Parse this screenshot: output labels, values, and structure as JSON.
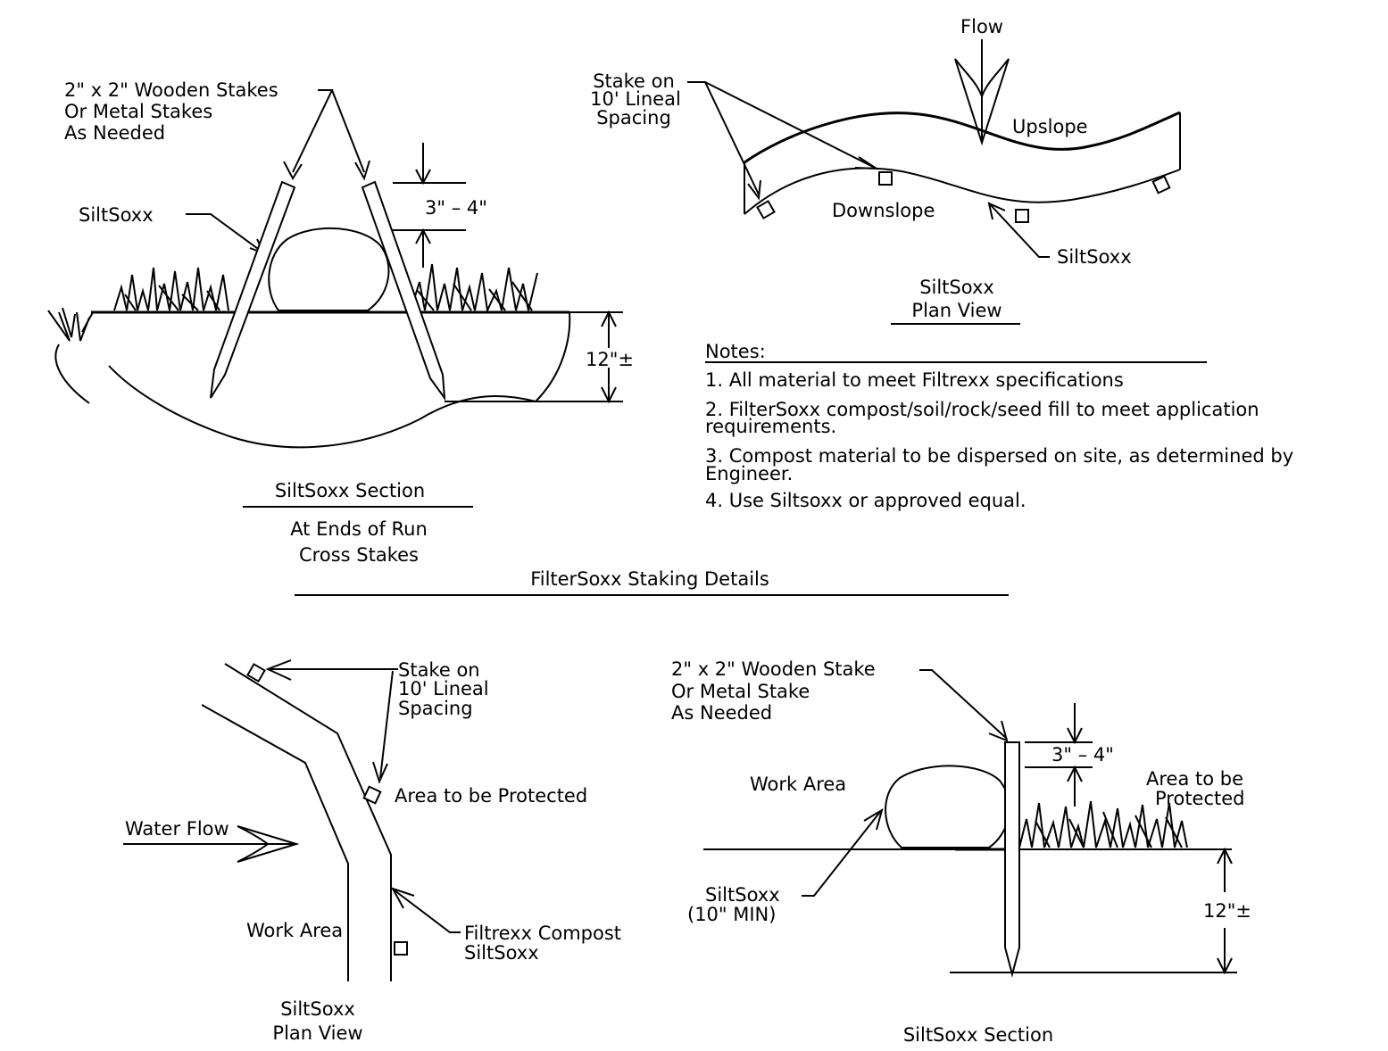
{
  "title": "FilterSoxx Staking Details",
  "section_a": {
    "stake_label": [
      "2\" x 2\" Wooden Stakes",
      "Or Metal Stakes",
      "As Needed"
    ],
    "soxx_label": "SiltSoxx",
    "height_dim": "3\" – 4\"",
    "depth_dim": "12\"±",
    "caption": "SiltSoxx Section",
    "subcaption": [
      "At Ends of Run",
      "Cross Stakes"
    ]
  },
  "plan_a": {
    "flow_label": "Flow",
    "stake_label": [
      "Stake on",
      "10' Lineal",
      "Spacing"
    ],
    "upslope_label": "Upslope",
    "downslope_label": "Downslope",
    "soxx_label": "SiltSoxx",
    "caption": [
      "SiltSoxx",
      "Plan View"
    ]
  },
  "notes": {
    "heading": "Notes:",
    "items": [
      "1. All material to meet Filtrexx specifications",
      "2. FilterSoxx compost/soil/rock/seed fill to meet application",
      "requirements.",
      "3. Compost material to be dispersed on site, as determined by",
      "Engineer.",
      "4. Use Siltsoxx or approved equal."
    ]
  },
  "plan_b": {
    "stake_label": [
      "Stake on",
      "10' Lineal",
      "Spacing"
    ],
    "protected_label": "Area   to be Protected",
    "water_flow_label": "Water Flow",
    "work_area_label": "Work Area",
    "soxx_label": [
      "Filtrexx Compost",
      "SiltSoxx"
    ],
    "caption": [
      "SiltSoxx",
      "Plan View"
    ]
  },
  "section_b": {
    "stake_label": [
      "2\" x 2\" Wooden Stake",
      "Or Metal Stake",
      "As Needed"
    ],
    "height_dim": "3\" – 4\"",
    "work_area_label": "Work Area",
    "protected_label": [
      "Area to be",
      "Protected"
    ],
    "soxx_label": [
      "SiltSoxx",
      "(10\" MIN)"
    ],
    "depth_dim": "12\"±",
    "caption": "SiltSoxx Section"
  }
}
